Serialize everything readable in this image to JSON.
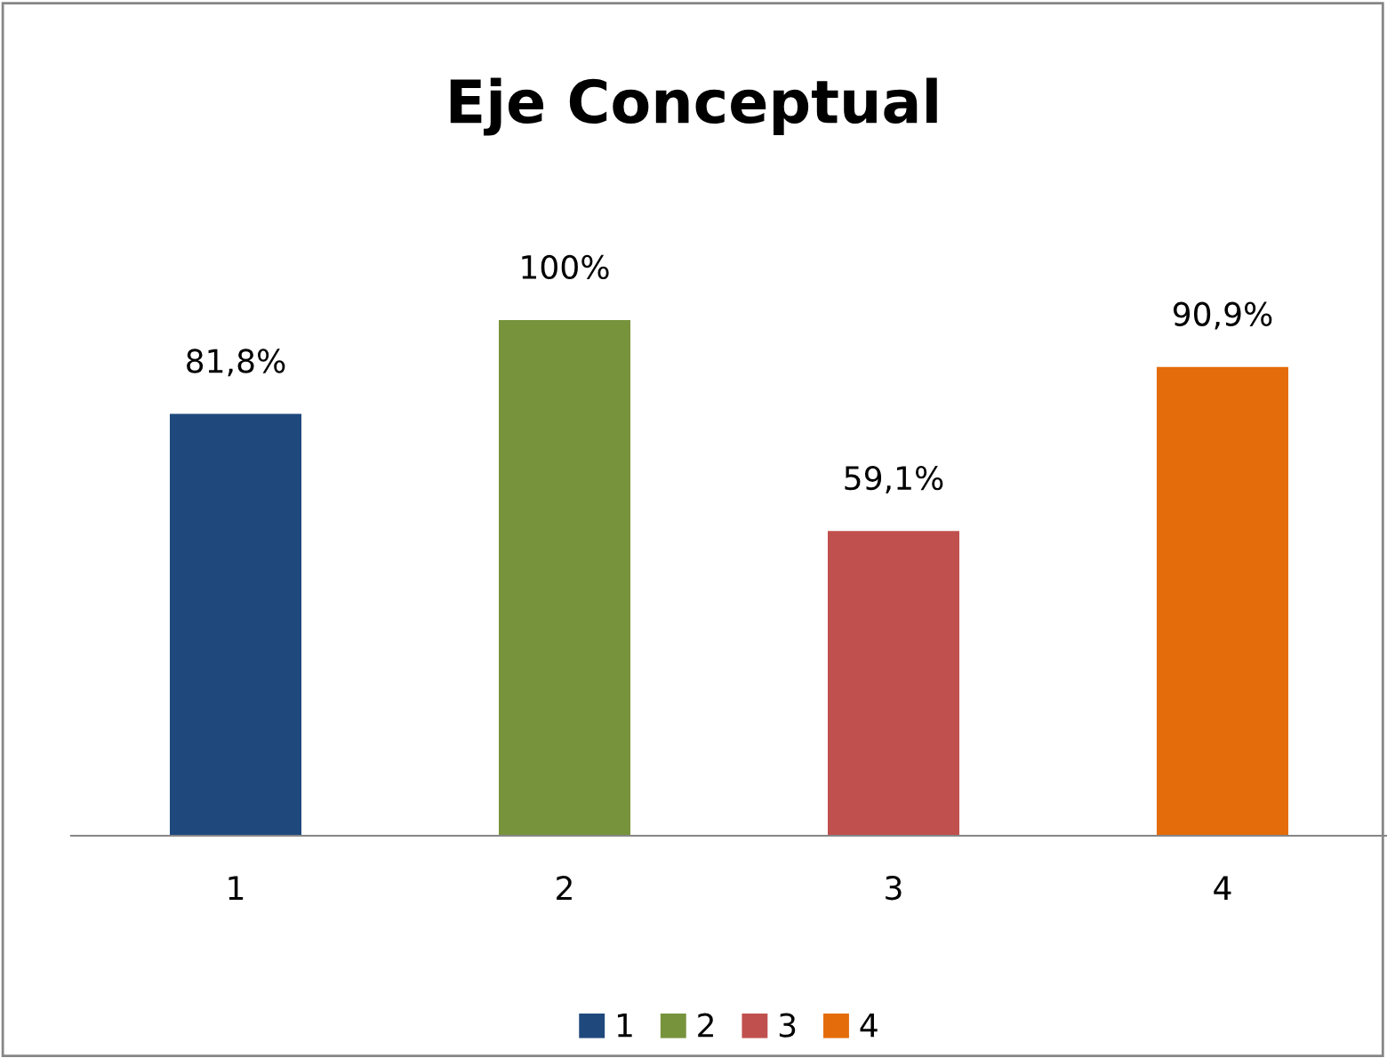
{
  "chart_data": {
    "type": "bar",
    "title": "Eje Conceptual",
    "categories": [
      "1",
      "2",
      "3",
      "4"
    ],
    "series": [
      {
        "name": "1",
        "color": "#1f497d",
        "values": [
          81.8,
          null,
          null,
          null
        ],
        "value_labels": [
          "81,8%",
          null,
          null,
          null
        ]
      },
      {
        "name": "2",
        "color": "#77933c",
        "values": [
          null,
          100,
          null,
          null
        ],
        "value_labels": [
          null,
          "100%",
          null,
          null
        ]
      },
      {
        "name": "3",
        "color": "#c0504d",
        "values": [
          null,
          null,
          59.1,
          null
        ],
        "value_labels": [
          null,
          null,
          "59,1%",
          null
        ]
      },
      {
        "name": "4",
        "color": "#e46c0a",
        "values": [
          null,
          null,
          null,
          90.9
        ],
        "value_labels": [
          null,
          null,
          null,
          "90,9%"
        ]
      }
    ],
    "legend": "bottom"
  }
}
